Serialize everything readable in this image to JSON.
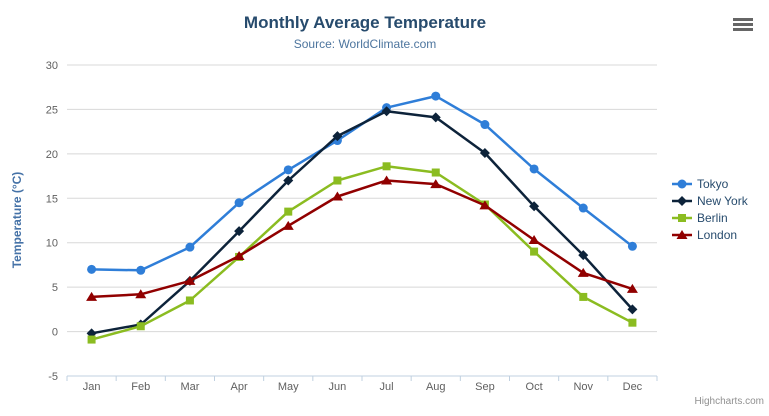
{
  "chart_data": {
    "type": "line",
    "title": "Monthly Average Temperature",
    "subtitle": "Source: WorldClimate.com",
    "xlabel": "",
    "ylabel": "Temperature (°C)",
    "categories": [
      "Jan",
      "Feb",
      "Mar",
      "Apr",
      "May",
      "Jun",
      "Jul",
      "Aug",
      "Sep",
      "Oct",
      "Nov",
      "Dec"
    ],
    "series": [
      {
        "name": "Tokyo",
        "marker": "circle",
        "color": "#2f7ed8",
        "values": [
          7.0,
          6.9,
          9.5,
          14.5,
          18.2,
          21.5,
          25.2,
          26.5,
          23.3,
          18.3,
          13.9,
          9.6
        ]
      },
      {
        "name": "New York",
        "marker": "diamond",
        "color": "#0d233a",
        "values": [
          -0.2,
          0.8,
          5.7,
          11.3,
          17.0,
          22.0,
          24.8,
          24.1,
          20.1,
          14.1,
          8.6,
          2.5
        ]
      },
      {
        "name": "Berlin",
        "marker": "square",
        "color": "#8bbc21",
        "values": [
          -0.9,
          0.6,
          3.5,
          8.4,
          13.5,
          17.0,
          18.6,
          17.9,
          14.3,
          9.0,
          3.9,
          1.0
        ]
      },
      {
        "name": "London",
        "marker": "triangle",
        "color": "#910000",
        "values": [
          3.9,
          4.2,
          5.7,
          8.5,
          11.9,
          15.2,
          17.0,
          16.6,
          14.2,
          10.3,
          6.6,
          4.8
        ]
      }
    ],
    "ylim": [
      -5,
      30
    ],
    "yticks": [
      -5,
      0,
      5,
      10,
      15,
      20,
      25,
      30
    ],
    "grid": "horizontal",
    "legend_position": "right"
  },
  "colors": {
    "title": "#274b6d",
    "subtitle": "#4d759e",
    "axis_title": "#4572a7",
    "axis_labels": "#606060",
    "gridline": "#d8d8d8",
    "axis_line": "#c0d0e0",
    "legend_text": "#274b6d",
    "credits_text": "#909090",
    "menu_icon": "#666666",
    "background": "#ffffff"
  },
  "credits": "Highcharts.com",
  "menu": {
    "icon": "hamburger-menu-icon"
  }
}
